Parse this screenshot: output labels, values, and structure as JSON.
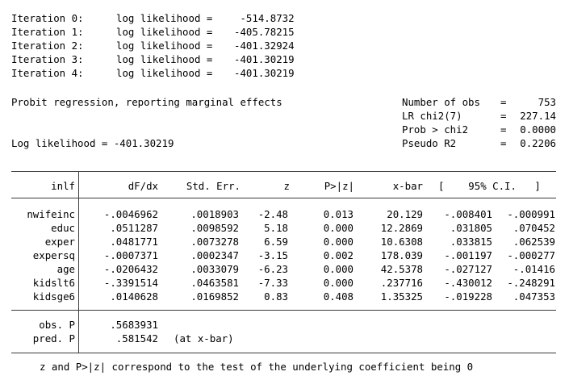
{
  "iterations": [
    {
      "label": "Iteration 0:",
      "ll_label": "log likelihood =",
      "value": " -514.8732"
    },
    {
      "label": "Iteration 1:",
      "ll_label": "log likelihood =",
      "value": "-405.78215"
    },
    {
      "label": "Iteration 2:",
      "ll_label": "log likelihood =",
      "value": "-401.32924"
    },
    {
      "label": "Iteration 3:",
      "ll_label": "log likelihood =",
      "value": "-401.30219"
    },
    {
      "label": "Iteration 4:",
      "ll_label": "log likelihood =",
      "value": "-401.30219"
    }
  ],
  "model": {
    "title": "Probit regression, reporting marginal effects",
    "log_likelihood": "Log likelihood = -401.30219",
    "stats": [
      {
        "label": "Number of obs",
        "eq": "=",
        "value": "753"
      },
      {
        "label": "LR chi2(7)",
        "eq": "=",
        "value": "227.14"
      },
      {
        "label": "Prob > chi2",
        "eq": "=",
        "value": "0.0000"
      },
      {
        "label": "Pseudo R2",
        "eq": "=",
        "value": "0.2206"
      }
    ]
  },
  "table": {
    "headers": {
      "var": "inlf",
      "dfdx": "dF/dx",
      "se": "Std. Err.",
      "z": "z",
      "p": "P>|z|",
      "xbar": "x-bar",
      "ci": "[    95% C.I.   ]"
    },
    "rows": [
      {
        "var": "nwifeinc",
        "dfdx": "-.0046962",
        "se": ".0018903",
        "z": "-2.48",
        "p": "0.013",
        "xbar": "20.129",
        "lo": "-.008401",
        "hi": "-.000991"
      },
      {
        "var": "educ",
        "dfdx": ".0511287",
        "se": ".0098592",
        "z": "5.18",
        "p": "0.000",
        "xbar": "12.2869",
        "lo": ".031805",
        "hi": ".070452"
      },
      {
        "var": "exper",
        "dfdx": ".0481771",
        "se": ".0073278",
        "z": "6.59",
        "p": "0.000",
        "xbar": "10.6308",
        "lo": ".033815",
        "hi": ".062539"
      },
      {
        "var": "expersq",
        "dfdx": "-.0007371",
        "se": ".0002347",
        "z": "-3.15",
        "p": "0.002",
        "xbar": "178.039",
        "lo": "-.001197",
        "hi": "-.000277"
      },
      {
        "var": "age",
        "dfdx": "-.0206432",
        "se": ".0033079",
        "z": "-6.23",
        "p": "0.000",
        "xbar": "42.5378",
        "lo": "-.027127",
        "hi": "-.01416"
      },
      {
        "var": "kidslt6",
        "dfdx": "-.3391514",
        "se": ".0463581",
        "z": "-7.33",
        "p": "0.000",
        "xbar": ".237716",
        "lo": "-.430012",
        "hi": "-.248291"
      },
      {
        "var": "kidsge6",
        "dfdx": ".0140628",
        "se": ".0169852",
        "z": "0.83",
        "p": "0.408",
        "xbar": "1.35325",
        "lo": "-.019228",
        "hi": ".047353"
      }
    ],
    "obs_p": {
      "label": "obs. P",
      "value": ".5683931"
    },
    "pred_p": {
      "label": "pred. P",
      "value": ".581542",
      "note": "(at x-bar)"
    }
  },
  "footnote": "z and P>|z| correspond to the test of the underlying coefficient being 0"
}
